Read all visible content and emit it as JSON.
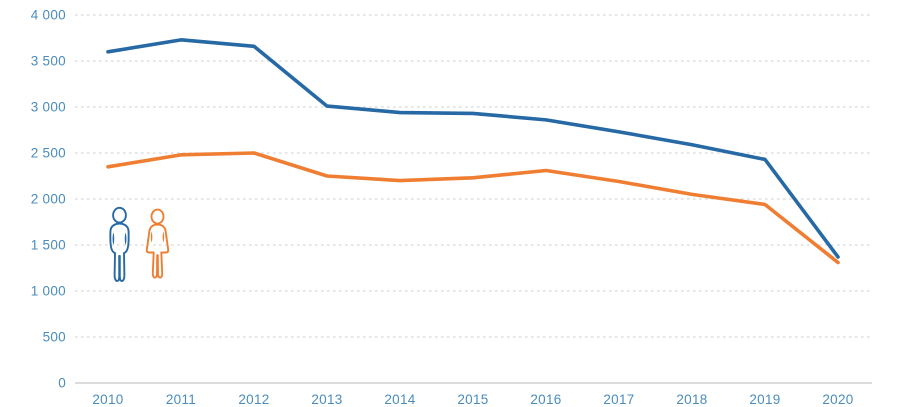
{
  "page": {
    "background": "#ffffff"
  },
  "colors": {
    "series_men": "#2769a4",
    "series_women": "#ef7e33",
    "axis_label": "#4a8cbe",
    "gridline": "#d6d6d6",
    "axis_line": "#c8c8c8"
  },
  "legend": {
    "items": [
      {
        "icon": "man-icon",
        "series": "men"
      },
      {
        "icon": "woman-icon",
        "series": "women"
      }
    ],
    "position": "left-middle"
  },
  "chart_data": {
    "type": "line",
    "title": "",
    "xlabel": "",
    "ylabel": "",
    "x": [
      2010,
      2011,
      2012,
      2013,
      2014,
      2015,
      2016,
      2017,
      2018,
      2019,
      2020
    ],
    "xtick_labels": [
      "2010",
      "2011",
      "2012",
      "2013",
      "2014",
      "2015",
      "2016",
      "2017",
      "2018",
      "2019",
      "2020"
    ],
    "ylim": [
      0,
      4000
    ],
    "ytick_step": 500,
    "ytick_values": [
      0,
      500,
      1000,
      1500,
      2000,
      2500,
      3000,
      3500,
      4000
    ],
    "ytick_labels": [
      "0",
      "500",
      "1 000",
      "1 500",
      "2 000",
      "2 500",
      "3 000",
      "3 500",
      "4 000"
    ],
    "grid": "horizontal-dashed",
    "legend_position": "pictograms-left-middle",
    "series": [
      {
        "name": "men",
        "color": "#2769a4",
        "values": [
          3600,
          3730,
          3660,
          3010,
          2940,
          2930,
          2860,
          2730,
          2590,
          2430,
          1370
        ]
      },
      {
        "name": "women",
        "color": "#ef7e33",
        "values": [
          2350,
          2480,
          2500,
          2250,
          2200,
          2230,
          2310,
          2190,
          2050,
          1940,
          1310
        ]
      }
    ]
  }
}
